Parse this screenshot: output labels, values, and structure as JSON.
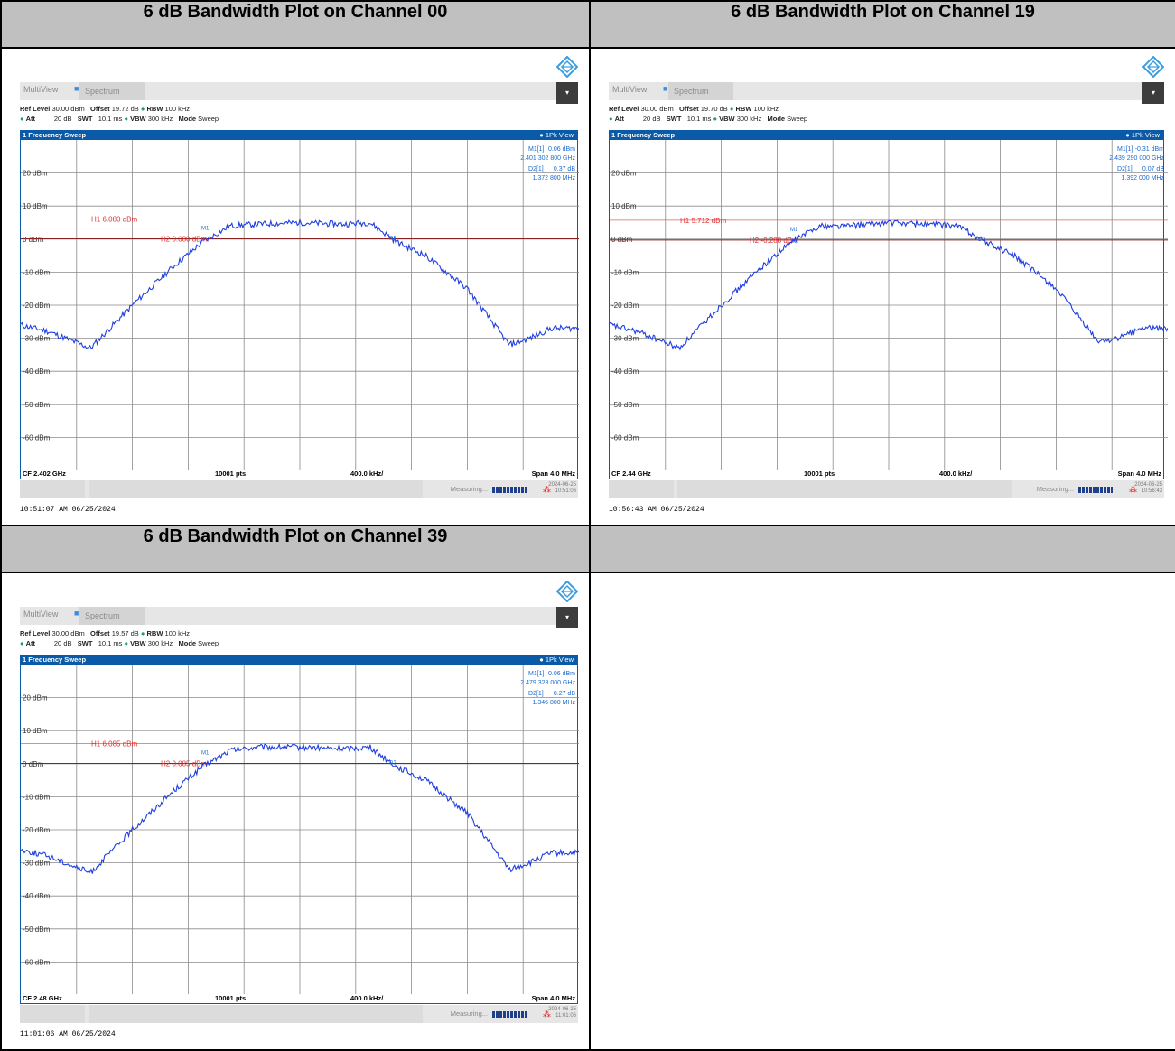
{
  "panels": [
    {
      "title": "6 dB Bandwidth Plot on Channel 00",
      "tab1": "MultiView",
      "tab2": "Spectrum",
      "ref_level_label": "Ref Level",
      "ref_level": "30.00 dBm",
      "offset_label": "Offset",
      "offset": "19.72 dB",
      "rbw_label": "RBW",
      "rbw": "100 kHz",
      "att_label": "Att",
      "att": "20 dB",
      "swt_label": "SWT",
      "swt": "10.1 ms",
      "vbw_label": "VBW",
      "vbw": "300 kHz",
      "mode_label": "Mode",
      "mode": "Sweep",
      "pane_title": "1 Frequency Sweep",
      "view": "1Pk View",
      "m1_label": "M1[1]",
      "m1_level": "0.06 dBm",
      "m1_freq": "2.401 302 800 GHz",
      "d2_label": "D2[1]",
      "d2_level": "0.37 dB",
      "d2_freq": "1.372 800 MHz",
      "h1": "H1 6.080 dBm",
      "h2": "H2 0.080 dBm",
      "cf": "CF 2.402 GHz",
      "pts": "10001 pts",
      "div": "400.0 kHz/",
      "span": "Span 4.0 MHz",
      "measuring": "Measuring...",
      "date": "2024-06-25",
      "time": "10:51:06",
      "timestamp": "10:51:07 AM  06/25/2024"
    },
    {
      "title": "6 dB Bandwidth Plot on Channel 19",
      "tab1": "MultiView",
      "tab2": "Spectrum",
      "ref_level_label": "Ref Level",
      "ref_level": "30.00 dBm",
      "offset_label": "Offset",
      "offset": "19.70 dB",
      "rbw_label": "RBW",
      "rbw": "100 kHz",
      "att_label": "Att",
      "att": "20 dB",
      "swt_label": "SWT",
      "swt": "10.1 ms",
      "vbw_label": "VBW",
      "vbw": "300 kHz",
      "mode_label": "Mode",
      "mode": "Sweep",
      "pane_title": "1 Frequency Sweep",
      "view": "1Pk View",
      "m1_label": "M1[1]",
      "m1_level": "-0.31 dBm",
      "m1_freq": "2.439 290 000 GHz",
      "d2_label": "D2[1]",
      "d2_level": "0.07 dB",
      "d2_freq": "1.392 000 MHz",
      "h1": "H1 5.712 dBm",
      "h2": "H2 -0.288 dBm",
      "cf": "CF 2.44 GHz",
      "pts": "10001 pts",
      "div": "400.0 kHz/",
      "span": "Span 4.0 MHz",
      "measuring": "Measuring...",
      "date": "2024-06-25",
      "time": "10:56:43",
      "timestamp": "10:56:43 AM  06/25/2024"
    },
    {
      "title": "6 dB Bandwidth Plot on Channel 39",
      "tab1": "MultiView",
      "tab2": "Spectrum",
      "ref_level_label": "Ref Level",
      "ref_level": "30.00 dBm",
      "offset_label": "Offset",
      "offset": "19.57 dB",
      "rbw_label": "RBW",
      "rbw": "100 kHz",
      "att_label": "Att",
      "att": "20 dB",
      "swt_label": "SWT",
      "swt": "10.1 ms",
      "vbw_label": "VBW",
      "vbw": "300 kHz",
      "mode_label": "Mode",
      "mode": "Sweep",
      "pane_title": "1 Frequency Sweep",
      "view": "1Pk View",
      "m1_label": "M1[1]",
      "m1_level": "0.06 dBm",
      "m1_freq": "2.479 328 000 GHz",
      "d2_label": "D2[1]",
      "d2_level": "0.27 dB",
      "d2_freq": "1.346 800 MHz",
      "h1": "H1 6.085 dBm",
      "h2": "H2 0.085 dBm",
      "cf": "CF 2.48 GHz",
      "pts": "10001 pts",
      "div": "400.0 kHz/",
      "span": "Span 4.0 MHz",
      "measuring": "Measuring...",
      "date": "2024-06-25",
      "time": "11:01:06",
      "timestamp": "11:01:06 AM  06/25/2024"
    }
  ],
  "y_tick_labels": [
    "20 dBm",
    "10 dBm",
    "0 dBm",
    "-10 dBm",
    "-20 dBm",
    "-30 dBm",
    "-40 dBm",
    "-50 dBm",
    "-60 dBm"
  ],
  "chart_data": [
    {
      "type": "line",
      "xlabel": "",
      "ylabel": "",
      "x_range_mhz": [
        -2.0,
        2.0
      ],
      "ylim": [
        -70,
        30
      ],
      "y_ticks": [
        20,
        10,
        0,
        -10,
        -20,
        -30,
        -40,
        -50,
        -60
      ],
      "series": [
        {
          "x": [
            -2.0,
            -1.8,
            -1.5,
            -1.2,
            -0.9,
            -0.7,
            -0.5,
            -0.3,
            0.0,
            0.3,
            0.5,
            0.7,
            0.9,
            1.2,
            1.5,
            1.65,
            1.8,
            2.0
          ],
          "y": [
            -26,
            -28,
            -33,
            -20,
            -8,
            -1,
            4,
            4.5,
            5,
            4.5,
            5,
            -1,
            -5,
            -15,
            -32,
            -30,
            -27,
            -27
          ]
        }
      ],
      "h1_dbm": 6.08,
      "h2_dbm": 0.08
    },
    {
      "type": "line",
      "xlabel": "",
      "ylabel": "",
      "x_range_mhz": [
        -2.0,
        2.0
      ],
      "ylim": [
        -70,
        30
      ],
      "y_ticks": [
        20,
        10,
        0,
        -10,
        -20,
        -30,
        -40,
        -50,
        -60
      ],
      "series": [
        {
          "x": [
            -2.0,
            -1.8,
            -1.5,
            -1.2,
            -0.9,
            -0.7,
            -0.5,
            -0.3,
            0.0,
            0.3,
            0.5,
            0.7,
            0.9,
            1.2,
            1.5,
            1.65,
            1.8,
            2.0
          ],
          "y": [
            -26,
            -28,
            -33,
            -20,
            -8,
            -1,
            4,
            4,
            5,
            4.5,
            4,
            -1,
            -5,
            -15,
            -31,
            -30,
            -27,
            -27
          ]
        }
      ],
      "h1_dbm": 5.712,
      "h2_dbm": -0.288
    },
    {
      "type": "line",
      "xlabel": "",
      "ylabel": "",
      "x_range_mhz": [
        -2.0,
        2.0
      ],
      "ylim": [
        -70,
        30
      ],
      "y_ticks": [
        20,
        10,
        0,
        -10,
        -20,
        -30,
        -40,
        -50,
        -60
      ],
      "series": [
        {
          "x": [
            -2.0,
            -1.8,
            -1.5,
            -1.2,
            -0.9,
            -0.7,
            -0.5,
            -0.3,
            0.0,
            0.3,
            0.5,
            0.7,
            0.9,
            1.2,
            1.5,
            1.65,
            1.8,
            2.0
          ],
          "y": [
            -26,
            -28,
            -33,
            -20,
            -8,
            -1,
            4,
            5,
            5,
            4.5,
            5,
            -1,
            -5,
            -15,
            -32,
            -30,
            -27,
            -27
          ]
        }
      ],
      "h1_dbm": 6.085,
      "h2_dbm": 0.085
    }
  ]
}
